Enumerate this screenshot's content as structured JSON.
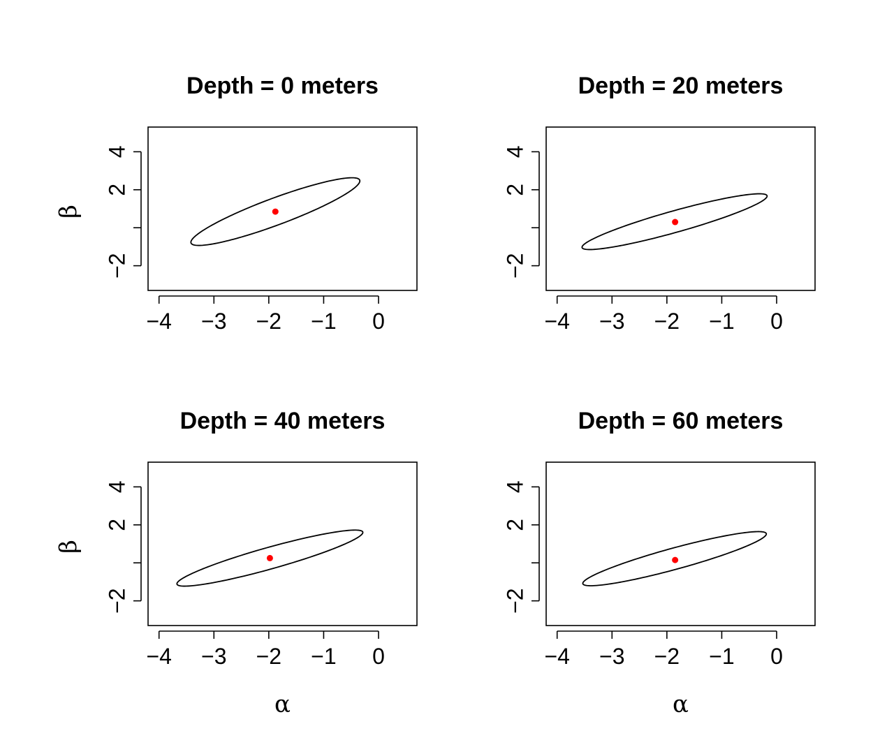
{
  "figure": {
    "xlabel": "α",
    "ylabel": "β"
  },
  "chart_data": [
    {
      "type": "scatter",
      "title": "Depth = 0 meters",
      "xlim": [
        -4.2,
        0.7
      ],
      "ylim": [
        -3.3,
        5.3
      ],
      "xticks": [
        -4,
        -3,
        -2,
        -1,
        0
      ],
      "xtick_labels": [
        "−4",
        "−3",
        "−2",
        "−1",
        "0"
      ],
      "yticks": [
        -2,
        0,
        2,
        4
      ],
      "ytick_labels": [
        "−2",
        "",
        "2",
        "4"
      ],
      "point": {
        "x": -1.88,
        "y": 0.85,
        "color": "#ff0000"
      },
      "ellipse": {
        "cx": -1.88,
        "cy": 0.85,
        "a": 2.3,
        "b": 0.505,
        "angle_deg": 49.6
      },
      "show_xlabel": false,
      "show_ylabel": true
    },
    {
      "type": "scatter",
      "title": "Depth = 20 meters",
      "xlim": [
        -4.2,
        0.7
      ],
      "ylim": [
        -3.3,
        5.3
      ],
      "xticks": [
        -4,
        -3,
        -2,
        -1,
        0
      ],
      "xtick_labels": [
        "−4",
        "−3",
        "−2",
        "−1",
        "0"
      ],
      "yticks": [
        -2,
        0,
        2,
        4
      ],
      "ytick_labels": [
        "−2",
        "",
        "2",
        "4"
      ],
      "point": {
        "x": -1.85,
        "y": 0.3,
        "color": "#ff0000"
      },
      "ellipse": {
        "cx": -1.86,
        "cy": 0.32,
        "a": 2.19,
        "b": 0.452,
        "angle_deg": 40.7
      },
      "show_xlabel": false,
      "show_ylabel": false
    },
    {
      "type": "scatter",
      "title": "Depth = 40 meters",
      "xlim": [
        -4.2,
        0.7
      ],
      "ylim": [
        -3.3,
        5.3
      ],
      "xticks": [
        -4,
        -3,
        -2,
        -1,
        0
      ],
      "xtick_labels": [
        "−4",
        "−3",
        "−2",
        "−1",
        "0"
      ],
      "yticks": [
        -2,
        0,
        2,
        4
      ],
      "ytick_labels": [
        "−2",
        "",
        "2",
        "4"
      ],
      "point": {
        "x": -1.98,
        "y": 0.25,
        "color": "#ff0000"
      },
      "ellipse": {
        "cx": -1.98,
        "cy": 0.25,
        "a": 2.2,
        "b": 0.455,
        "angle_deg": 40.7
      },
      "show_xlabel": true,
      "show_ylabel": true
    },
    {
      "type": "scatter",
      "title": "Depth = 60 meters",
      "xlim": [
        -4.2,
        0.7
      ],
      "ylim": [
        -3.3,
        5.3
      ],
      "xticks": [
        -4,
        -3,
        -2,
        -1,
        0
      ],
      "xtick_labels": [
        "−4",
        "−3",
        "−2",
        "−1",
        "0"
      ],
      "yticks": [
        -2,
        0,
        2,
        4
      ],
      "ytick_labels": [
        "−2",
        "",
        "2",
        "4"
      ],
      "point": {
        "x": -1.85,
        "y": 0.15,
        "color": "#ff0000"
      },
      "ellipse": {
        "cx": -1.86,
        "cy": 0.22,
        "a": 2.15,
        "b": 0.452,
        "angle_deg": 40.0
      },
      "show_xlabel": true,
      "show_ylabel": false
    }
  ]
}
